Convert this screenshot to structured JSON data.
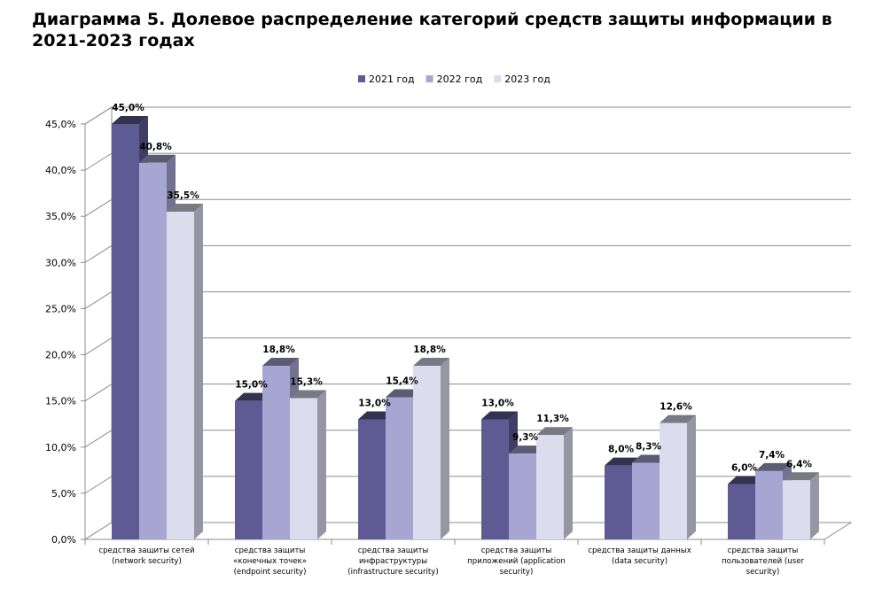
{
  "page": {
    "title": "Диаграмма 5. Долевое распределение категорий средств защиты информации в 2021-2023 годах"
  },
  "chart_data": {
    "type": "bar",
    "style": "3d-clustered-column",
    "title": "",
    "xlabel": "",
    "ylabel": "",
    "ylim": [
      0,
      45
    ],
    "yticks": [
      0,
      5,
      10,
      15,
      20,
      25,
      30,
      35,
      40,
      45
    ],
    "ytick_labels": [
      "0,0%",
      "5,0%",
      "10,0%",
      "15,0%",
      "20,0%",
      "25,0%",
      "30,0%",
      "35,0%",
      "40,0%",
      "45,0%"
    ],
    "grid": true,
    "legend_position": "top",
    "categories": [
      [
        "средства защиты сетей",
        "(network security)"
      ],
      [
        "средства защиты",
        "«конечных точек»",
        "(endpoint security)"
      ],
      [
        "средства защиты",
        "инфраструктуры",
        "(infrastructure security)"
      ],
      [
        "средства защиты",
        "приложений (application",
        "security)"
      ],
      [
        "средства защиты данных",
        "(data security)"
      ],
      [
        "средства защиты",
        "пользователей (user",
        "security)"
      ]
    ],
    "series": [
      {
        "name": "2021 год",
        "color": "#5e5a93",
        "values": [
          45.0,
          15.0,
          13.0,
          13.0,
          8.0,
          6.0
        ],
        "labels": [
          "45,0%",
          "15,0%",
          "13,0%",
          "13,0%",
          "8,0%",
          "6,0%"
        ]
      },
      {
        "name": "2022 год",
        "color": "#a7a6d2",
        "values": [
          40.8,
          18.8,
          15.4,
          9.3,
          8.3,
          7.4
        ],
        "labels": [
          "40,8%",
          "18,8%",
          "15,4%",
          "9,3%",
          "8,3%",
          "7,4%"
        ]
      },
      {
        "name": "2023 год",
        "color": "#dcdcee",
        "values": [
          35.5,
          15.3,
          18.8,
          11.3,
          12.6,
          6.4
        ],
        "labels": [
          "35,5%",
          "15,3%",
          "18,8%",
          "11,3%",
          "12,6%",
          "6,4%"
        ]
      }
    ]
  }
}
